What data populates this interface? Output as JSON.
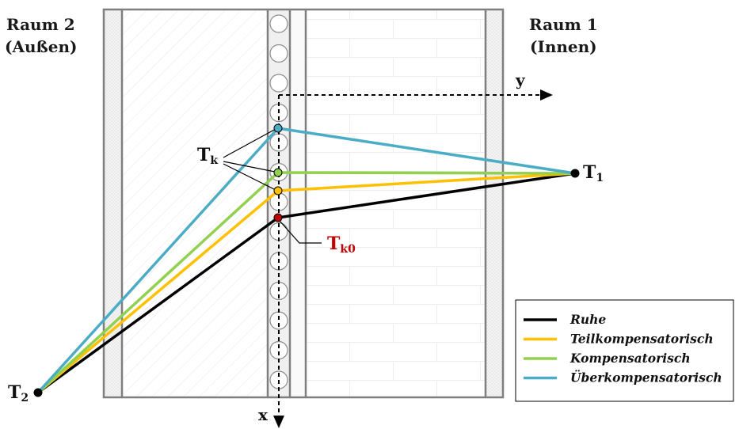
{
  "rooms": {
    "left": {
      "line1": "Raum 2",
      "line2": "(Außen)"
    },
    "right": {
      "line1": "Raum 1",
      "line2": "(Innen)"
    }
  },
  "axes": {
    "x": "x",
    "y": "y"
  },
  "points": {
    "t1": {
      "main": "T",
      "sub": "1"
    },
    "t2": {
      "main": "T",
      "sub": "2"
    },
    "tk": {
      "main": "T",
      "sub": "k"
    },
    "tk0": {
      "main": "T",
      "sub": "k0"
    }
  },
  "colors": {
    "ruhe": "#000000",
    "teil": "#ffc000",
    "komp": "#92d050",
    "ueber": "#4bacc6",
    "tk0_text": "#c00000",
    "tk0_dot": "#c00000",
    "wall_line": "#7f7f7f"
  },
  "legend": [
    {
      "label": "Ruhe",
      "color": "#000000"
    },
    {
      "label": "Teilkompensatorisch",
      "color": "#ffc000"
    },
    {
      "label": "Kompensatorisch",
      "color": "#92d050"
    },
    {
      "label": "Überkompensatorisch",
      "color": "#4bacc6"
    }
  ]
}
